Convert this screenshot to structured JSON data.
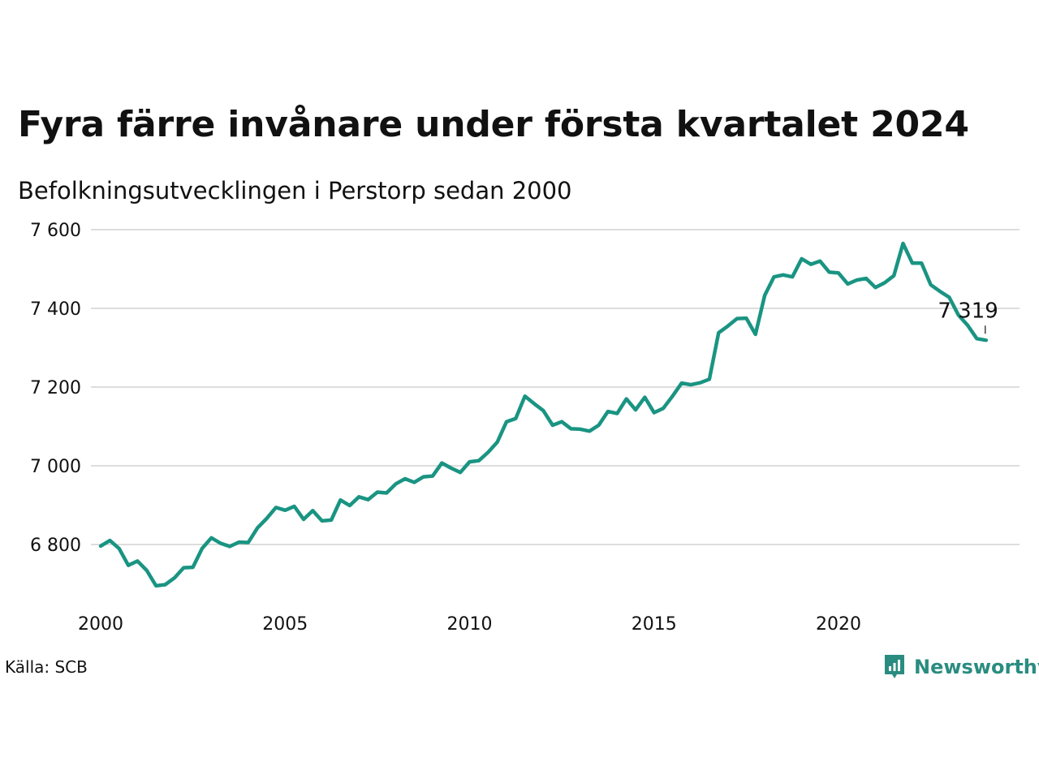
{
  "title": "Fyra färre invånare under första kvartalet 2024",
  "subtitle": "Befolkningsutvecklingen i Perstorp sedan 2000",
  "source": "Källa: SCB",
  "brand": {
    "name": "Newsworthy",
    "icon": "newsworthy-logo-icon",
    "color": "#2a8c80"
  },
  "colors": {
    "line": "#1a9482",
    "grid": "#dddddd",
    "text": "#111111"
  },
  "chart_data": {
    "type": "line",
    "title": "Fyra färre invånare under första kvartalet 2024",
    "subtitle": "Befolkningsutvecklingen i Perstorp sedan 2000",
    "xlabel": "",
    "ylabel": "",
    "xlim": [
      2000,
      2024.6
    ],
    "ylim": [
      6660,
      7620
    ],
    "yticks": [
      6800,
      7000,
      7200,
      7400,
      7600
    ],
    "ytick_labels": [
      "6 800",
      "7 000",
      "7 200",
      "7 400",
      "7 600"
    ],
    "xticks": [
      2000,
      2005,
      2010,
      2015,
      2020
    ],
    "xtick_labels": [
      "2000",
      "2005",
      "2010",
      "2015",
      "2020"
    ],
    "grid": "horizontal",
    "legend": "none",
    "annotation": {
      "text": "7 319",
      "x": 2024.0,
      "y": 7319
    },
    "series": [
      {
        "x": [
          2000.0,
          2000.25,
          2000.5,
          2000.75,
          2001.0,
          2001.25,
          2001.5,
          2001.75,
          2002.0,
          2002.25,
          2002.5,
          2002.75,
          2003.0,
          2003.25,
          2003.5,
          2003.75,
          2004.0,
          2004.25,
          2004.5,
          2004.75,
          2005.0,
          2005.25,
          2005.5,
          2005.75,
          2006.0,
          2006.25,
          2006.5,
          2006.75,
          2007.0,
          2007.25,
          2007.5,
          2007.75,
          2008.0,
          2008.25,
          2008.5,
          2008.75,
          2009.0,
          2009.25,
          2009.5,
          2009.75,
          2010.0,
          2010.25,
          2010.5,
          2010.75,
          2011.0,
          2011.25,
          2011.5,
          2011.75,
          2012.0,
          2012.25,
          2012.5,
          2012.75,
          2013.0,
          2013.25,
          2013.5,
          2013.75,
          2014.0,
          2014.25,
          2014.5,
          2014.75,
          2015.0,
          2015.25,
          2015.5,
          2015.75,
          2016.0,
          2016.25,
          2016.5,
          2016.75,
          2017.0,
          2017.25,
          2017.5,
          2017.75,
          2018.0,
          2018.25,
          2018.5,
          2018.75,
          2019.0,
          2019.25,
          2019.5,
          2019.75,
          2020.0,
          2020.25,
          2020.5,
          2020.75,
          2021.0,
          2021.25,
          2021.5,
          2021.75,
          2022.0,
          2022.25,
          2022.5,
          2022.75,
          2023.0,
          2023.25,
          2023.5,
          2023.75,
          2024.0
        ],
        "y": [
          6796,
          6810,
          6790,
          6747,
          6758,
          6734,
          6695,
          6698,
          6715,
          6741,
          6742,
          6790,
          6817,
          6803,
          6795,
          6806,
          6805,
          6842,
          6866,
          6894,
          6887,
          6897,
          6864,
          6886,
          6860,
          6862,
          6913,
          6899,
          6921,
          6914,
          6933,
          6931,
          6954,
          6967,
          6958,
          6972,
          6974,
          7007,
          6994,
          6983,
          7010,
          7013,
          7034,
          7060,
          7112,
          7120,
          7177,
          7158,
          7140,
          7103,
          7112,
          7094,
          7093,
          7088,
          7103,
          7138,
          7133,
          7170,
          7142,
          7174,
          7135,
          7146,
          7177,
          7210,
          7206,
          7211,
          7220,
          7338,
          7355,
          7374,
          7375,
          7334,
          7433,
          7480,
          7485,
          7480,
          7526,
          7512,
          7520,
          7492,
          7490,
          7462,
          7472,
          7476,
          7453,
          7465,
          7483,
          7565,
          7515,
          7515,
          7460,
          7443,
          7428,
          7383,
          7357,
          7323,
          7319
        ]
      }
    ]
  }
}
